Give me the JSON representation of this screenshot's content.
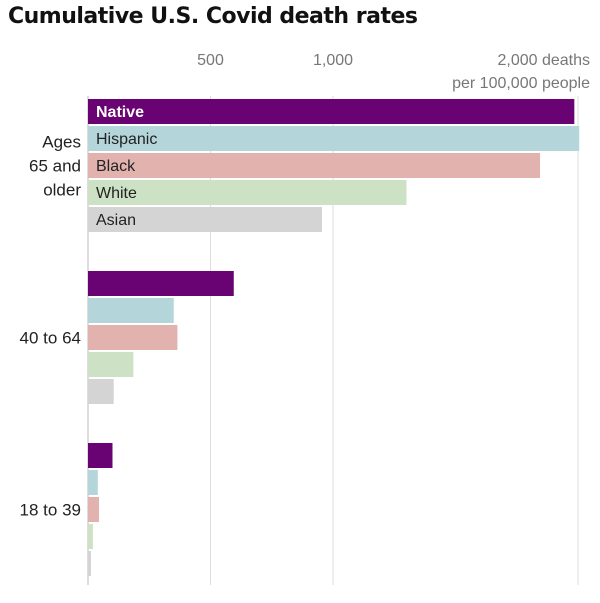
{
  "chart_data": {
    "type": "bar",
    "orientation": "horizontal",
    "title": "Cumulative U.S. Covid death rates",
    "x_ticks": [
      {
        "value": 500,
        "label": "500"
      },
      {
        "value": 1000,
        "label": "1,000"
      },
      {
        "value": 2000,
        "label": "2,000 deaths",
        "sublabel": "per 100,000 people"
      }
    ],
    "xlim": [
      0,
      2000
    ],
    "grid": true,
    "series": [
      {
        "name": "Native",
        "color": "#690373",
        "text_color": "#ffffff",
        "bold": true
      },
      {
        "name": "Hispanic",
        "color": "#b4d5da",
        "text_color": "#222222",
        "bold": false
      },
      {
        "name": "Black",
        "color": "#e1b2ae",
        "text_color": "#222222",
        "bold": false
      },
      {
        "name": "White",
        "color": "#cde2c4",
        "text_color": "#222222",
        "bold": false
      },
      {
        "name": "Asian",
        "color": "#d4d4d4",
        "text_color": "#222222",
        "bold": false
      }
    ],
    "groups": [
      {
        "label_lines": [
          "Ages",
          "65 and",
          "older"
        ],
        "values": [
          1985,
          2005,
          1845,
          1300,
          955
        ],
        "show_series_labels": true
      },
      {
        "label_lines": [
          "40 to 64"
        ],
        "values": [
          595,
          350,
          365,
          185,
          105
        ],
        "show_series_labels": false
      },
      {
        "label_lines": [
          "18 to 39"
        ],
        "values": [
          100,
          40,
          45,
          20,
          12
        ],
        "show_series_labels": false
      }
    ]
  }
}
